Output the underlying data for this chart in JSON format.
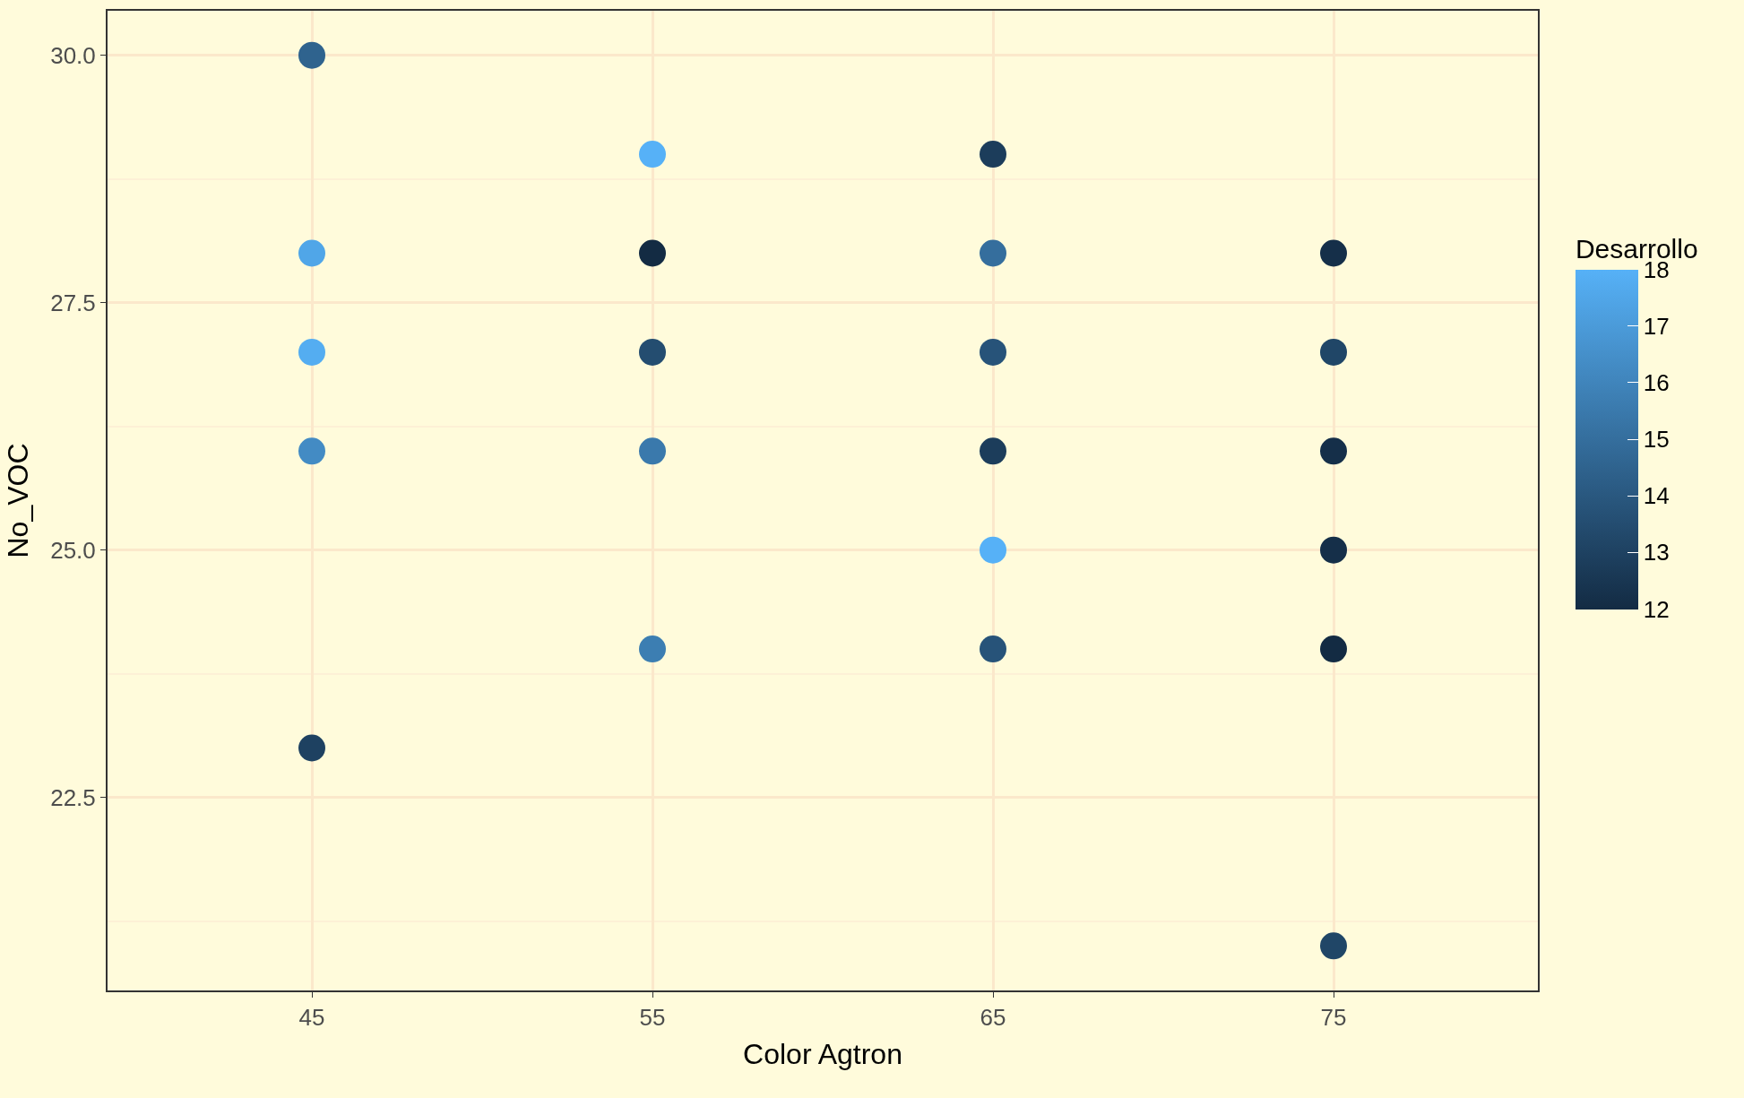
{
  "chart_data": {
    "type": "scatter",
    "xlabel": "Color Agtron",
    "ylabel": "No_VOC",
    "clabel": "Desarrollo",
    "categories": [
      "45",
      "55",
      "65",
      "75"
    ],
    "series": [
      {
        "x": [
          "45",
          "45",
          "45",
          "45",
          "45",
          "55",
          "55",
          "55",
          "55",
          "55",
          "65",
          "65",
          "65",
          "65",
          "65",
          "65",
          "75",
          "75",
          "75",
          "75",
          "75",
          "75"
        ],
        "values": [
          30,
          28,
          27,
          26,
          23,
          29,
          28,
          27,
          26,
          24,
          29,
          28,
          27,
          26,
          25,
          24,
          28,
          27,
          26,
          25,
          24,
          21
        ],
        "cvalues": [
          14.5,
          17.5,
          17.8,
          16.3,
          13,
          18,
          12,
          13.5,
          15.5,
          15.7,
          12.8,
          15,
          13.8,
          12.8,
          18,
          13.8,
          12.2,
          13.2,
          12.2,
          12.2,
          12,
          13.2
        ]
      }
    ],
    "ylim": [
      20.55,
      30.45
    ],
    "yticks": [
      22.5,
      {
        "value": 25,
        "label": "25.0"
      },
      27.5,
      {
        "value": 30,
        "label": "30.0"
      }
    ],
    "clim": [
      12,
      18
    ],
    "cticks": [
      12,
      13,
      14,
      15,
      16,
      17,
      18
    ],
    "grid": true,
    "marker": "circle",
    "legend": false
  }
}
